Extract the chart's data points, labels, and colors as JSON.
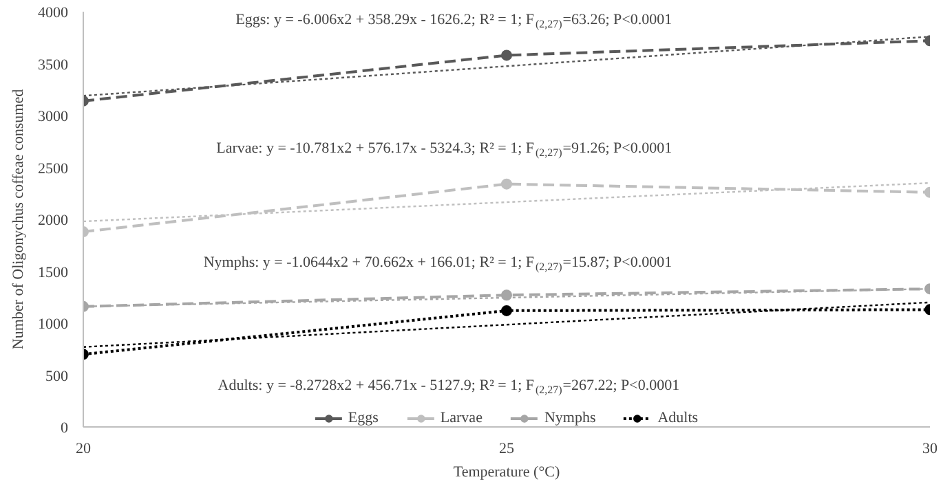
{
  "chart_data": {
    "type": "line",
    "xlabel": "Temperature (°C)",
    "ylabel": "Number of Oligonychus coffeae consumed",
    "x": [
      20,
      25,
      30
    ],
    "xlim": [
      20,
      30
    ],
    "xticks": [
      20,
      25,
      30
    ],
    "ylim": [
      0,
      4000
    ],
    "yticks": [
      0,
      500,
      1000,
      1500,
      2000,
      2500,
      3000,
      3500,
      4000
    ],
    "grid": false,
    "legend": "bottom",
    "marker": "circle",
    "series": [
      {
        "name": "Eggs",
        "color": "#595959",
        "values": [
          3140,
          3580,
          3720
        ],
        "line_style": "dashed"
      },
      {
        "name": "Larvae",
        "color": "#bfbfbf",
        "values": [
          1880,
          2340,
          2260
        ],
        "line_style": "dashed"
      },
      {
        "name": "Nymphs",
        "color": "#a6a6a6",
        "values": [
          1160,
          1270,
          1330
        ],
        "line_style": "dashed"
      },
      {
        "name": "Adults",
        "color": "#000000",
        "values": [
          700,
          1120,
          1130
        ],
        "line_style": "dotted"
      },
      {
        "type": "line",
        "color": "#595959",
        "values": [
          3190,
          3475,
          3760
        ],
        "line_style": "dotted",
        "marker": "none"
      },
      {
        "type": "line",
        "color": "#bfbfbf",
        "values": [
          1980,
          2165,
          2350
        ],
        "line_style": "dotted",
        "marker": "none"
      },
      {
        "type": "line",
        "color": "#a6a6a6",
        "values": [
          1160,
          1245,
          1330
        ],
        "line_style": "dotted",
        "marker": "none"
      },
      {
        "type": "line",
        "color": "#000000",
        "values": [
          770,
          985,
          1200
        ],
        "line_style": "dotted",
        "marker": "none"
      }
    ],
    "annotations": [
      "Eggs: y = -6.006x2 + 358.29x - 1626.2; R² = 1; F$_{(2,27)}$=63.26; P<0.0001",
      "Larvae: y = -10.781x2 + 576.17x - 5324.3; R² = 1; F$_{(2,27)}$=91.26; P<0.0001",
      "Nymphs: y = -1.0644x2 + 70.662x + 166.01; R² = 1; F$_{(2,27)}$=15.87; P<0.0001",
      "Adults: y = -8.2728x2 + 456.71x - 5127.9; R² = 1; F$_{(2,27)}$=267.22; P<0.0001"
    ]
  }
}
